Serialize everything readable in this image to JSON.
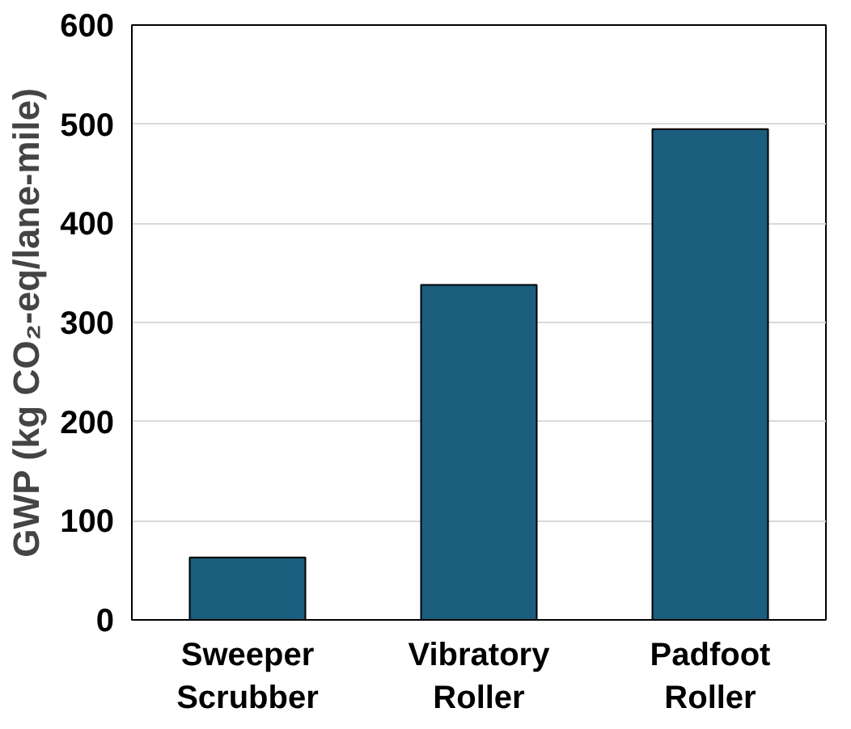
{
  "chart_data": {
    "type": "bar",
    "ylabel": "GWP (kg CO₂-eq/lane-mile)",
    "categories": [
      "Sweeper Scrubber",
      "Vibratory Roller",
      "Padfoot Roller"
    ],
    "values": [
      63,
      338,
      495
    ],
    "color": "#1b5e7e",
    "ylim": [
      0,
      600
    ],
    "yticks": [
      0,
      100,
      200,
      300,
      400,
      500,
      600
    ],
    "grid": "y"
  }
}
